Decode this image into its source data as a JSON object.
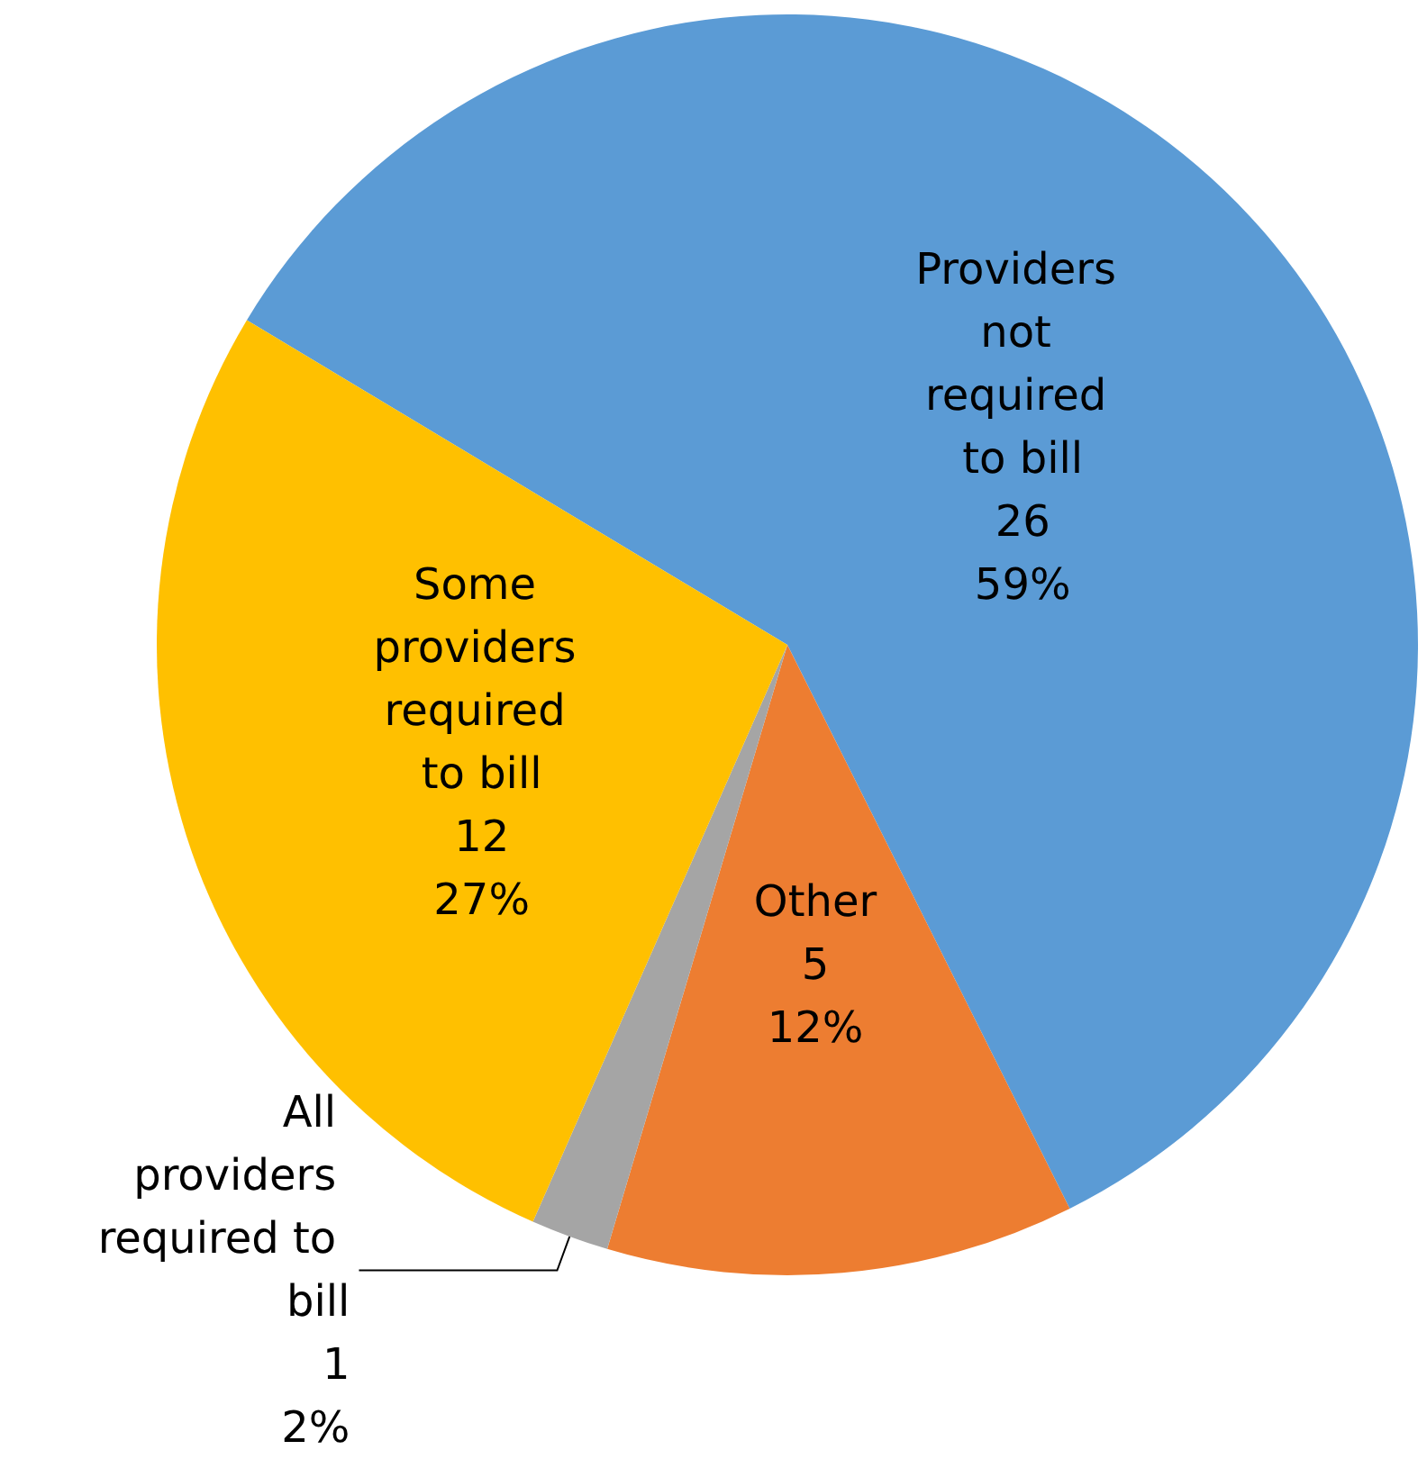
{
  "chart_data": {
    "type": "pie",
    "categories": [
      "Providers not required to bill",
      "Other",
      "All providers required to bill",
      "Some providers required to bill"
    ],
    "values": [
      59,
      12,
      2,
      27
    ],
    "value_labels": [
      "26\n59%",
      "5\n12%",
      "1\n2%",
      "12\n27%"
    ],
    "colors": [
      "#5b9bd5",
      "#ed7d31",
      "#a5a5a5",
      "#ffc000"
    ],
    "legend": false
  }
}
